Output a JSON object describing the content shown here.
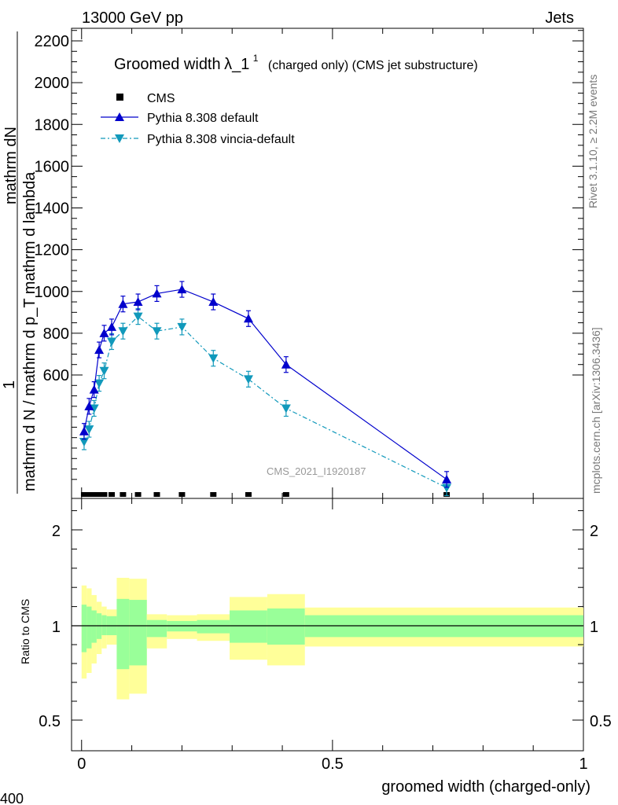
{
  "header": {
    "left": "13000 GeV pp",
    "right": "Jets"
  },
  "side": {
    "rivet": "Rivet 3.1.10, ≥ 2.2M events",
    "mcplots": "mcplots.cern.ch [arXiv:1306.3436]"
  },
  "chart_data": [
    {
      "type": "line",
      "title_main": "Groomed width",
      "title_symbol": "λ_1",
      "title_sup": "1",
      "title_rest": "(charged only) (CMS jet substructure)",
      "ylabel_numerator_top": "mathrm d",
      "ylabel_numerator_n": "N",
      "ylabel_denominator": "mathrm d N / mathrm d p_T mathrm d",
      "ylabel_lambda": "mathrm d lambda",
      "ylabel_one": "1",
      "ylabel_inner": "mathrm d N / mathrm d p_T mathrm d lambda",
      "ylabel_full_frac_top": "mathrm dN",
      "ylabel_full_frac_bottom": "mathrm d N / mathrm d p_T mathrm d lambda",
      "yticks": [
        "600",
        "800",
        "1000",
        "1200",
        "1400",
        "1600",
        "1800",
        "2000",
        "2200"
      ],
      "ylim": [
        0,
        2260
      ],
      "xlim": [
        -0.02,
        1.0
      ],
      "watermark": "CMS_2021_I1920187",
      "legend": [
        {
          "name": "CMS",
          "color": "#000000",
          "marker": "square"
        },
        {
          "name": "Pythia 8.308 default",
          "color": "#0000cc",
          "marker": "triangle-up"
        },
        {
          "name": "Pythia 8.308 vincia-default",
          "color": "#1199bb",
          "marker": "triangle-down"
        }
      ],
      "series": [
        {
          "name": "CMS",
          "x": [
            0.005,
            0.015,
            0.025,
            0.035,
            0.045,
            0.06,
            0.0825,
            0.1125,
            0.15,
            0.2,
            0.2625,
            0.3325,
            0.4075,
            0.7275
          ],
          "y": [
            0,
            0,
            0,
            0,
            0,
            0,
            0,
            0,
            0,
            0,
            0,
            0,
            0,
            0
          ]
        },
        {
          "name": "Pythia 8.308 default",
          "x": [
            0.005,
            0.015,
            0.025,
            0.035,
            0.045,
            0.06,
            0.0825,
            0.1125,
            0.15,
            0.2,
            0.2625,
            0.3325,
            0.4075,
            0.7275
          ],
          "y": [
            330,
            450,
            530,
            720,
            800,
            830,
            940,
            950,
            990,
            1010,
            950,
            870,
            650,
            100
          ]
        },
        {
          "name": "Pythia 8.308 vincia-default",
          "x": [
            0.005,
            0.015,
            0.025,
            0.035,
            0.045,
            0.06,
            0.0825,
            0.1125,
            0.15,
            0.2,
            0.2625,
            0.3325,
            0.4075,
            0.7275
          ],
          "y": [
            280,
            340,
            440,
            560,
            620,
            760,
            810,
            880,
            810,
            830,
            680,
            580,
            440,
            60
          ]
        }
      ]
    },
    {
      "type": "area",
      "ylabel": "Ratio to CMS",
      "xlabel": "groomed width (charged-only)",
      "xticks": [
        "0",
        "0.5",
        "1"
      ],
      "yticks": [
        "0.5",
        "1",
        "2"
      ],
      "ylim": [
        0.35,
        2.3
      ],
      "xlim": [
        -0.02,
        1.0
      ],
      "corner_label": "400",
      "bands": {
        "edges": [
          0.0,
          0.01,
          0.02,
          0.03,
          0.04,
          0.05,
          0.07,
          0.095,
          0.13,
          0.17,
          0.23,
          0.295,
          0.37,
          0.445,
          1.0
        ],
        "yellow_hi": [
          1.42,
          1.39,
          1.32,
          1.25,
          1.2,
          1.17,
          1.5,
          1.49,
          1.12,
          1.11,
          1.12,
          1.3,
          1.33,
          1.19
        ],
        "yellow_lo": [
          0.72,
          0.75,
          0.8,
          0.85,
          0.88,
          0.9,
          0.61,
          0.64,
          0.88,
          0.93,
          0.92,
          0.82,
          0.79,
          0.89
        ],
        "green_hi": [
          1.22,
          1.2,
          1.16,
          1.13,
          1.11,
          1.1,
          1.28,
          1.27,
          1.06,
          1.05,
          1.06,
          1.16,
          1.18,
          1.11
        ],
        "green_lo": [
          0.86,
          0.88,
          0.91,
          0.93,
          0.95,
          0.95,
          0.77,
          0.79,
          0.94,
          0.97,
          0.96,
          0.91,
          0.9,
          0.94
        ]
      }
    }
  ],
  "colors": {
    "default_line": "#0000cc",
    "vincia_line": "#1199bb",
    "band_yellow": "#ffff99",
    "band_green": "#99ff99",
    "side_text": "#777777",
    "watermark": "#999999"
  }
}
